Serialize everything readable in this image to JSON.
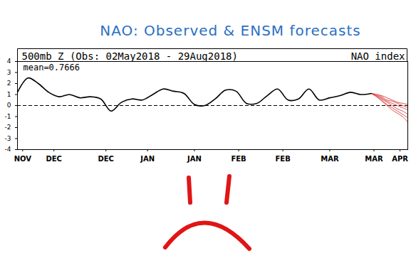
{
  "chart_data": {
    "type": "line",
    "title": "NAO: Observed & ENSM forecasts",
    "subtitle": "500mb Z (Obs: 02May2018 - 29Aug2018)",
    "ylabel": "NAO index",
    "annotations": [
      "mean=0.7666"
    ],
    "xlim": [
      0,
      150
    ],
    "xticks": [
      {
        "value": 2,
        "label": "NOV"
      },
      {
        "value": 14,
        "label": "DEC"
      },
      {
        "value": 34,
        "label": "DEC"
      },
      {
        "value": 50,
        "label": "JAN"
      },
      {
        "value": 68,
        "label": "JAN"
      },
      {
        "value": 85,
        "label": "FEB"
      },
      {
        "value": 102,
        "label": "FEB"
      },
      {
        "value": 120,
        "label": "MAR"
      },
      {
        "value": 137,
        "label": "MAR"
      },
      {
        "value": 147,
        "label": "APR"
      }
    ],
    "ylim": [
      -4,
      4
    ],
    "yticks": [
      -4,
      -3,
      -2,
      -1,
      0,
      1,
      2,
      3,
      4
    ],
    "line_style": "solid",
    "series": [
      {
        "color": "#000000",
        "x": [
          0,
          4,
          8,
          12,
          16,
          20,
          24,
          28,
          32,
          36,
          40,
          44,
          48,
          52,
          56,
          60,
          64,
          68,
          72,
          76,
          80,
          84,
          88,
          92,
          96,
          100,
          104,
          108,
          112,
          116,
          120,
          124,
          128,
          132,
          136
        ],
        "values": [
          1.2,
          2.5,
          2.0,
          1.2,
          0.8,
          1.0,
          0.7,
          0.8,
          0.6,
          -0.5,
          0.3,
          0.6,
          0.5,
          1.0,
          1.5,
          1.3,
          1.1,
          0.1,
          0.0,
          0.6,
          1.4,
          1.3,
          0.2,
          0.2,
          0.9,
          1.5,
          0.5,
          0.6,
          1.5,
          0.5,
          0.7,
          0.9,
          1.2,
          1.0,
          1.1
        ]
      },
      {
        "color": "#d94040",
        "x": [
          136,
          138,
          140,
          142,
          144,
          146,
          148,
          150
        ],
        "values": [
          1.1,
          1.0,
          0.9,
          0.7,
          0.5,
          0.3,
          0.2,
          0.1
        ]
      },
      {
        "color": "#d94040",
        "x": [
          136,
          138,
          140,
          142,
          144,
          146,
          148,
          150
        ],
        "values": [
          1.1,
          0.9,
          0.7,
          0.4,
          0.2,
          0.0,
          -0.2,
          -0.4
        ]
      },
      {
        "color": "#d94040",
        "x": [
          136,
          138,
          140,
          142,
          144,
          146,
          148,
          150
        ],
        "values": [
          1.1,
          0.9,
          0.6,
          0.3,
          0.0,
          -0.3,
          -0.5,
          -0.8
        ]
      },
      {
        "color": "#d94040",
        "x": [
          136,
          138,
          140,
          142,
          144,
          146,
          148,
          150
        ],
        "values": [
          1.1,
          0.8,
          0.5,
          0.1,
          -0.2,
          -0.5,
          -0.8,
          -1.1
        ]
      },
      {
        "color": "#d94040",
        "x": [
          136,
          138,
          140,
          142,
          144,
          146,
          148,
          150
        ],
        "values": [
          1.1,
          0.8,
          0.4,
          0.0,
          -0.4,
          -0.7,
          -1.0,
          -1.5
        ]
      },
      {
        "color": "#d94040",
        "x": [
          136,
          138,
          140,
          142,
          144,
          146,
          148,
          150
        ],
        "values": [
          1.1,
          1.0,
          0.8,
          0.5,
          0.4,
          0.2,
          0.0,
          -0.2
        ]
      }
    ]
  }
}
